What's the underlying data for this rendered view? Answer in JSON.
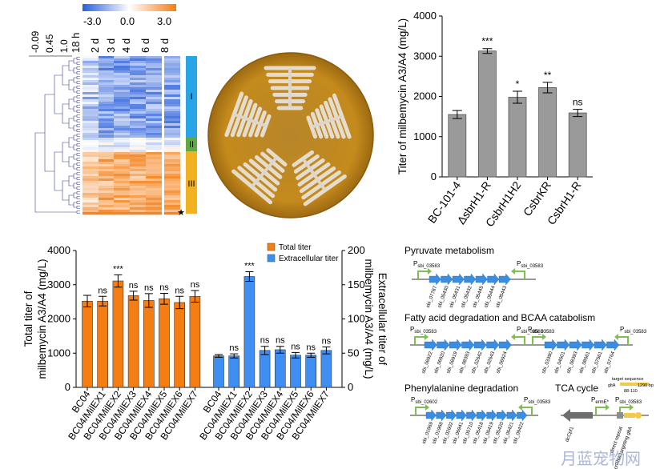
{
  "colors": {
    "orange": "#f57e14",
    "blue": "#3f8ef2",
    "gray": "#9a9a9a",
    "arrow_blue": "#3b8de0",
    "promoter_green": "#7fbf52",
    "plate_rim": "#bf8418",
    "plate_center": "#b7862a",
    "cluster_I": "#27a5e6",
    "cluster_II": "#5fa845",
    "cluster_III": "#f2b11f",
    "dendro": "#3a3a8c",
    "watermark": "#8f9ec8"
  },
  "heatmap": {
    "colorbar": {
      "ticks": [
        "-3.0",
        "0.0",
        "3.0"
      ]
    },
    "dendro_scale": [
      "-0.09",
      "0.45",
      "1.0"
    ],
    "columns": [
      "18 h",
      "2 d",
      "3 d",
      "4 d",
      "6 d",
      "8 d"
    ],
    "clusters": [
      "I",
      "II",
      "III"
    ],
    "marker": "★"
  },
  "charts": {
    "top_right": {
      "type": "bar",
      "categories": [
        "BC-101-4",
        "ΔsbrH1-R",
        "CsbrH1H2",
        "CsbrKR",
        "CsbrH1-R"
      ],
      "values": [
        1550,
        3130,
        1980,
        2220,
        1590
      ],
      "errors": [
        100,
        60,
        150,
        130,
        90
      ],
      "significance": [
        "",
        "***",
        "*",
        "**",
        "ns"
      ],
      "ylabel": "Titer of milbemycin A3/A4 (mg/L)",
      "ylim": [
        0,
        4000
      ],
      "yticks": [
        "0",
        "1000",
        "2000",
        "3000",
        "4000"
      ]
    },
    "bottom_left": {
      "type": "bar",
      "categories": [
        "BC04",
        "BC04/MilEX1",
        "BC04/MilEX2",
        "BC04/MilEX3",
        "BC04/MilEX4",
        "BC04/MilEX5",
        "BC04/MilEX6",
        "BC04/MilEX7"
      ],
      "total": {
        "name": "Total titer",
        "values": [
          2520,
          2520,
          3110,
          2680,
          2540,
          2590,
          2480,
          2660
        ],
        "errors": [
          170,
          140,
          180,
          130,
          200,
          160,
          180,
          170
        ],
        "significance": [
          "",
          "ns",
          "***",
          "ns",
          "ns",
          "ns",
          "ns",
          "ns"
        ]
      },
      "extracellular": {
        "name": "Extracellular titer",
        "values": [
          46,
          46,
          162,
          54,
          55,
          47,
          47,
          54
        ],
        "errors": [
          2,
          3,
          7,
          6,
          5,
          4,
          3,
          5
        ],
        "significance": [
          "",
          "ns",
          "***",
          "ns",
          "ns",
          "ns",
          "ns",
          "ns"
        ]
      },
      "ylabel_left": [
        "Total titer of",
        "milbemycin A3/A4 (mg/L)"
      ],
      "ylabel_right": [
        "Extracellular titer of",
        "milbemycin A3/A4 (mg/L)"
      ],
      "ylim_left": [
        0,
        4000
      ],
      "ylim_right": [
        0,
        200
      ],
      "yticks_left": [
        "0",
        "1000",
        "2000",
        "3000",
        "4000"
      ],
      "yticks_right": [
        "0",
        "50",
        "100",
        "150",
        "200"
      ]
    }
  },
  "pathways": [
    {
      "title": "Pyruvate metabolism",
      "p_left": "P",
      "p_left_sub": "sbi_03583",
      "p_right": "P",
      "p_right_sub": "sbi_03583",
      "genes": [
        "sbi_07787",
        "sbi_05430",
        "sbi_05431",
        "sbi_05432",
        "sbi_05445",
        "sbi_05444",
        "sbi_05443"
      ]
    },
    {
      "title": "Fatty acid degradation and BCAA catabolism",
      "p_left": "P",
      "p_left_sub": "sbi_03583",
      "p_mid1": "P",
      "p_mid1_sub": "sbi_03583",
      "p_mid2": "P",
      "p_mid2_sub": "sbi_03583",
      "p_right": "P",
      "p_right_sub": "sbi_03583",
      "genes": [
        "sbi_06922",
        "sbi_06920",
        "sbi_06919",
        "sbi_08393",
        "sbi_02642",
        "sbi_02643",
        "sbi_06924",
        "sbi_03390",
        "sbi_04601",
        "sbi_08393",
        "sbi_08661",
        "sbi_07561",
        "sbi_07764"
      ]
    },
    {
      "title": "Phenylalanine degradation",
      "p_left": "P",
      "p_left_sub": "sbi_02602",
      "p_right": "P",
      "p_right_sub": "sbi_03583",
      "genes": [
        "sbi_01969",
        "sbi_01968",
        "sbi_02602",
        "sbi_06941",
        "sbi_00710",
        "sbi_05418",
        "sbi_05419",
        "sbi_05420",
        "sbi_05421",
        "sbi_09422"
      ]
    }
  ],
  "tca": {
    "title": "TCA cycle",
    "p_left": "P",
    "p_left_sub": "ermE*",
    "p_right": "P",
    "p_right_sub": "sbi_03583",
    "target_label": "target sequence",
    "target_gene": "gltA",
    "target_len": "1290 bp",
    "target_range": "88-110",
    "labels": [
      "dcCpf1",
      "direct repeat",
      "crRNA targeting gltA"
    ]
  },
  "watermark": "月蓝宠物网"
}
